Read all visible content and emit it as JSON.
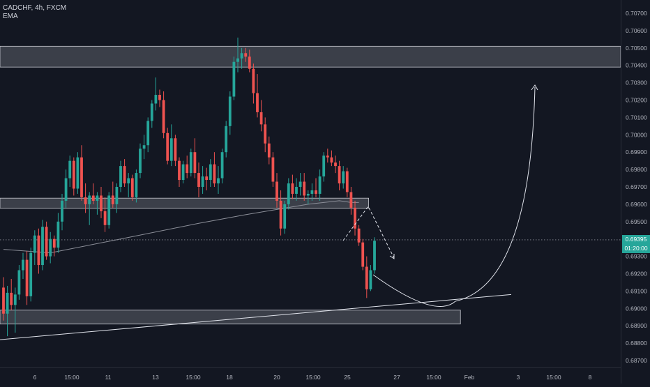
{
  "header": {
    "symbol_line": "CADCHF, 4h, FXCM",
    "indicator_label": "EMA"
  },
  "price_label": {
    "price": "0.69395",
    "countdown": "01:20:00",
    "color": "#26a69a"
  },
  "colors": {
    "background": "#131722",
    "up": "#26a69a",
    "down": "#ef5350",
    "text": "#b2b5be",
    "zone_fill": "#4a4d57",
    "zone_border": "#c9cbd2",
    "ema": "#8c8f99",
    "drawing": "#e0e3eb"
  },
  "chart_data": {
    "type": "candlestick",
    "title": "CADCHF, 4h, FXCM",
    "xlabel": "",
    "ylabel": "",
    "ylim": [
      0.68665,
      0.7075
    ],
    "y_ticks": [
      "0.70700",
      "0.70600",
      "0.70500",
      "0.70400",
      "0.70300",
      "0.70200",
      "0.70100",
      "0.70000",
      "0.69900",
      "0.69800",
      "0.69700",
      "0.69600",
      "0.69500",
      "0.69400",
      "0.69300",
      "0.69200",
      "0.69100",
      "0.69000",
      "0.68900",
      "0.68800",
      "0.68700"
    ],
    "x_ticks": [
      "6",
      "15:00",
      "11",
      "13",
      "15:00",
      "18",
      "20",
      "15:00",
      "25",
      "27",
      "15:00",
      "Feb",
      "3",
      "15:00",
      "8"
    ],
    "ohlc": [
      [
        0.6912,
        0.6918,
        0.6893,
        0.6897
      ],
      [
        0.6897,
        0.6913,
        0.6884,
        0.6909
      ],
      [
        0.6909,
        0.6917,
        0.6899,
        0.6902
      ],
      [
        0.6902,
        0.6912,
        0.6886,
        0.6908
      ],
      [
        0.6908,
        0.6925,
        0.6905,
        0.6922
      ],
      [
        0.6922,
        0.6932,
        0.6917,
        0.6928
      ],
      [
        0.6928,
        0.6933,
        0.6902,
        0.6907
      ],
      [
        0.6907,
        0.6935,
        0.6904,
        0.6932
      ],
      [
        0.6932,
        0.6945,
        0.6925,
        0.6942
      ],
      [
        0.6942,
        0.6946,
        0.692,
        0.6925
      ],
      [
        0.6925,
        0.6951,
        0.6922,
        0.6947
      ],
      [
        0.6947,
        0.695,
        0.6928,
        0.693
      ],
      [
        0.693,
        0.6944,
        0.6926,
        0.694
      ],
      [
        0.694,
        0.6942,
        0.693,
        0.6935
      ],
      [
        0.6935,
        0.6955,
        0.6932,
        0.695
      ],
      [
        0.695,
        0.6966,
        0.6945,
        0.6962
      ],
      [
        0.6962,
        0.698,
        0.6958,
        0.6975
      ],
      [
        0.6975,
        0.6988,
        0.697,
        0.6985
      ],
      [
        0.6985,
        0.6987,
        0.6965,
        0.6969
      ],
      [
        0.6969,
        0.699,
        0.6966,
        0.6987
      ],
      [
        0.6987,
        0.6994,
        0.6962,
        0.6964
      ],
      [
        0.6964,
        0.6972,
        0.6955,
        0.696
      ],
      [
        0.696,
        0.6967,
        0.6948,
        0.6965
      ],
      [
        0.6965,
        0.6972,
        0.696,
        0.6962
      ],
      [
        0.6962,
        0.6967,
        0.6954,
        0.6965
      ],
      [
        0.6965,
        0.697,
        0.6952,
        0.6956
      ],
      [
        0.6956,
        0.6964,
        0.6944,
        0.6948
      ],
      [
        0.6948,
        0.6967,
        0.6946,
        0.6965
      ],
      [
        0.6965,
        0.6973,
        0.6958,
        0.696
      ],
      [
        0.696,
        0.6972,
        0.6955,
        0.697
      ],
      [
        0.697,
        0.6985,
        0.6967,
        0.6982
      ],
      [
        0.6982,
        0.6986,
        0.697,
        0.6972
      ],
      [
        0.6972,
        0.6978,
        0.6964,
        0.6975
      ],
      [
        0.6975,
        0.6977,
        0.6962,
        0.6964
      ],
      [
        0.6964,
        0.698,
        0.6961,
        0.6978
      ],
      [
        0.6978,
        0.6995,
        0.6975,
        0.6992
      ],
      [
        0.6992,
        0.7,
        0.6986,
        0.6994
      ],
      [
        0.6994,
        0.701,
        0.699,
        0.7008
      ],
      [
        0.7008,
        0.702,
        0.7004,
        0.7018
      ],
      [
        0.7018,
        0.7033,
        0.7014,
        0.7023
      ],
      [
        0.7023,
        0.7026,
        0.7016,
        0.702
      ],
      [
        0.702,
        0.7025,
        0.6998,
        0.7001
      ],
      [
        0.7001,
        0.7004,
        0.6983,
        0.6985
      ],
      [
        0.6985,
        0.7006,
        0.6982,
        0.6998
      ],
      [
        0.6998,
        0.7,
        0.6982,
        0.6985
      ],
      [
        0.6985,
        0.6987,
        0.697,
        0.6974
      ],
      [
        0.6974,
        0.6985,
        0.6972,
        0.6983
      ],
      [
        0.6983,
        0.6988,
        0.6975,
        0.6978
      ],
      [
        0.6978,
        0.6992,
        0.6976,
        0.699
      ],
      [
        0.699,
        0.6998,
        0.6975,
        0.6978
      ],
      [
        0.6978,
        0.6984,
        0.6964,
        0.697
      ],
      [
        0.697,
        0.6982,
        0.6966,
        0.6976
      ],
      [
        0.6976,
        0.6981,
        0.6968,
        0.6974
      ],
      [
        0.6974,
        0.6986,
        0.697,
        0.6983
      ],
      [
        0.6983,
        0.699,
        0.697,
        0.6972
      ],
      [
        0.6972,
        0.6982,
        0.6966,
        0.6975
      ],
      [
        0.6975,
        0.6992,
        0.6972,
        0.699
      ],
      [
        0.699,
        0.7008,
        0.6987,
        0.7005
      ],
      [
        0.7005,
        0.7025,
        0.7,
        0.7022
      ],
      [
        0.7022,
        0.7045,
        0.702,
        0.7042
      ],
      [
        0.7042,
        0.7056,
        0.7036,
        0.7044
      ],
      [
        0.7044,
        0.705,
        0.7038,
        0.7047
      ],
      [
        0.7047,
        0.705,
        0.7042,
        0.7045
      ],
      [
        0.7045,
        0.7049,
        0.7036,
        0.7038
      ],
      [
        0.7038,
        0.7041,
        0.7018,
        0.7024
      ],
      [
        0.7024,
        0.7035,
        0.701,
        0.7013
      ],
      [
        0.7013,
        0.702,
        0.7002,
        0.7006
      ],
      [
        0.7006,
        0.701,
        0.699,
        0.6995
      ],
      [
        0.6995,
        0.6999,
        0.6983,
        0.6987
      ],
      [
        0.6987,
        0.699,
        0.697,
        0.6973
      ],
      [
        0.6973,
        0.6978,
        0.6958,
        0.6962
      ],
      [
        0.6962,
        0.6968,
        0.6942,
        0.6946
      ],
      [
        0.6946,
        0.6962,
        0.6943,
        0.696
      ],
      [
        0.696,
        0.6975,
        0.6957,
        0.6972
      ],
      [
        0.6972,
        0.6977,
        0.6963,
        0.6966
      ],
      [
        0.6966,
        0.6975,
        0.6962,
        0.697
      ],
      [
        0.697,
        0.6978,
        0.6965,
        0.6973
      ],
      [
        0.6973,
        0.6978,
        0.6962,
        0.6965
      ],
      [
        0.6965,
        0.6968,
        0.696,
        0.6966
      ],
      [
        0.6966,
        0.6972,
        0.6962,
        0.6968
      ],
      [
        0.6968,
        0.6975,
        0.6964,
        0.6966
      ],
      [
        0.6966,
        0.698,
        0.6962,
        0.6976
      ],
      [
        0.6976,
        0.699,
        0.6973,
        0.6988
      ],
      [
        0.6988,
        0.6992,
        0.6984,
        0.6987
      ],
      [
        0.6987,
        0.6991,
        0.6982,
        0.6984
      ],
      [
        0.6984,
        0.6988,
        0.6978,
        0.6982
      ],
      [
        0.6982,
        0.6985,
        0.6968,
        0.6972
      ],
      [
        0.6972,
        0.6982,
        0.6969,
        0.6979
      ],
      [
        0.6979,
        0.6981,
        0.6964,
        0.6967
      ],
      [
        0.6967,
        0.697,
        0.6954,
        0.6958
      ],
      [
        0.6958,
        0.6962,
        0.6942,
        0.6946
      ],
      [
        0.6946,
        0.6948,
        0.6936,
        0.6938
      ],
      [
        0.6938,
        0.694,
        0.6922,
        0.6924
      ],
      [
        0.6924,
        0.693,
        0.6906,
        0.6911
      ],
      [
        0.6911,
        0.6925,
        0.691,
        0.6922
      ],
      [
        0.6922,
        0.6941,
        0.692,
        0.6939
      ]
    ],
    "ema": [
      [
        0,
        0.6934
      ],
      [
        12,
        0.6932
      ],
      [
        30,
        0.694
      ],
      [
        50,
        0.6949
      ],
      [
        62,
        0.6954
      ],
      [
        70,
        0.6957
      ],
      [
        78,
        0.696
      ],
      [
        86,
        0.6962
      ],
      [
        89,
        0.6961
      ],
      [
        91,
        0.6961
      ]
    ],
    "zones": [
      {
        "y1": 0.7051,
        "y2": 0.7039,
        "start": 0,
        "end": "edge"
      },
      {
        "y1": 0.69635,
        "y2": 0.69577,
        "start": 0,
        "end": 93.5
      },
      {
        "y1": 0.6899,
        "y2": 0.6891,
        "start": 0,
        "end": 117
      }
    ],
    "trendline": [
      [
        -1,
        0.6882
      ],
      [
        130,
        0.6908
      ]
    ],
    "current_price": 0.69395,
    "legend": "none",
    "grid": false
  }
}
